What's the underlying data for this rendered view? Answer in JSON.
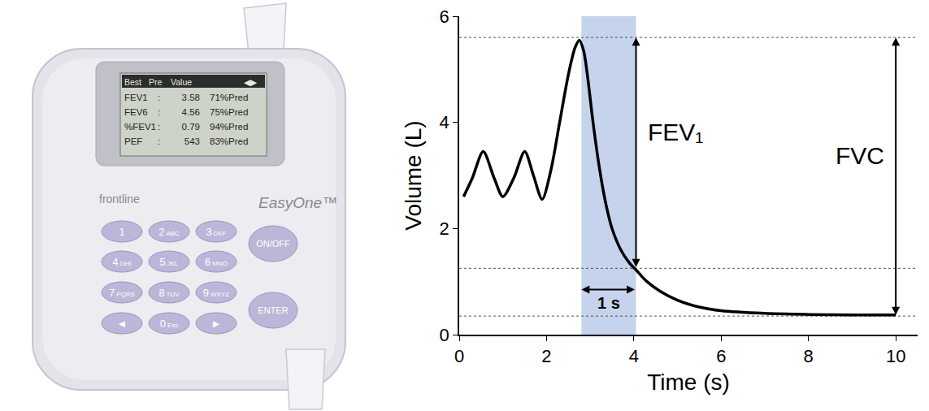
{
  "device": {
    "brand": "frontline",
    "model": "EasyOne™",
    "screen": {
      "header": [
        "Best",
        "Pre",
        "Value",
        "◀▶"
      ],
      "rows": [
        [
          "FEV1",
          ":",
          "3.58",
          "71%Pred"
        ],
        [
          "FEV6",
          ":",
          "4.56",
          "75%Pred"
        ],
        [
          "%FEV1",
          ":",
          "0.79",
          "94%Pred"
        ],
        [
          "PEF",
          ":",
          "543",
          "83%Pred"
        ]
      ]
    },
    "keys": [
      {
        "digit": "1"
      },
      {
        "digit": "2",
        "letters": "ABC"
      },
      {
        "digit": "3",
        "letters": "DEF"
      },
      {
        "digit": "4",
        "letters": "GHI"
      },
      {
        "digit": "5",
        "letters": "JKL"
      },
      {
        "digit": "6",
        "letters": "MNO"
      },
      {
        "digit": "7",
        "letters": "PQRS"
      },
      {
        "digit": "8",
        "letters": "TUV"
      },
      {
        "digit": "9",
        "letters": "WXYZ"
      },
      {
        "digit": "◄"
      },
      {
        "digit": "0",
        "letters": "Esc"
      },
      {
        "digit": "►"
      }
    ],
    "side_keys": [
      "ON/OFF",
      "ENTER"
    ]
  },
  "chart_data": {
    "type": "line",
    "x_label": "Time (s)",
    "y_label": "Volume (L)",
    "x": [
      0.1,
      0.3,
      0.55,
      0.8,
      1.0,
      1.25,
      1.5,
      1.7,
      1.9,
      2.1,
      2.3,
      2.5,
      2.65,
      2.75,
      2.85,
      2.95,
      3.05,
      3.2,
      3.35,
      3.5,
      3.7,
      3.9,
      4.05,
      4.3,
      4.6,
      5,
      5.5,
      6,
      7,
      8,
      9,
      10
    ],
    "values": [
      2.6,
      2.95,
      3.45,
      2.95,
      2.6,
      2.95,
      3.45,
      3.0,
      2.55,
      3.1,
      4.0,
      4.9,
      5.4,
      5.55,
      5.35,
      4.8,
      4.1,
      3.2,
      2.5,
      2.0,
      1.6,
      1.35,
      1.22,
      1.0,
      0.82,
      0.65,
      0.52,
      0.45,
      0.4,
      0.38,
      0.37,
      0.37
    ],
    "color": "#000000",
    "xlim": [
      0,
      10.5
    ],
    "xticks": [
      0,
      2,
      4,
      6,
      8,
      10
    ],
    "ylim": [
      0,
      6
    ],
    "yticks": [
      0,
      2,
      4,
      6
    ],
    "grid": false,
    "shaded_interval": {
      "x": [
        2.8,
        4.05
      ],
      "label": "1 s",
      "color": "#c5d3ec"
    },
    "reference_lines": [
      5.6,
      1.25,
      0.35
    ],
    "brackets": [
      {
        "label": "FEV₁",
        "x": 4.05,
        "y": [
          5.6,
          1.25
        ]
      },
      {
        "label": "FVC",
        "x": 10,
        "y": [
          5.6,
          0.35
        ]
      }
    ]
  }
}
